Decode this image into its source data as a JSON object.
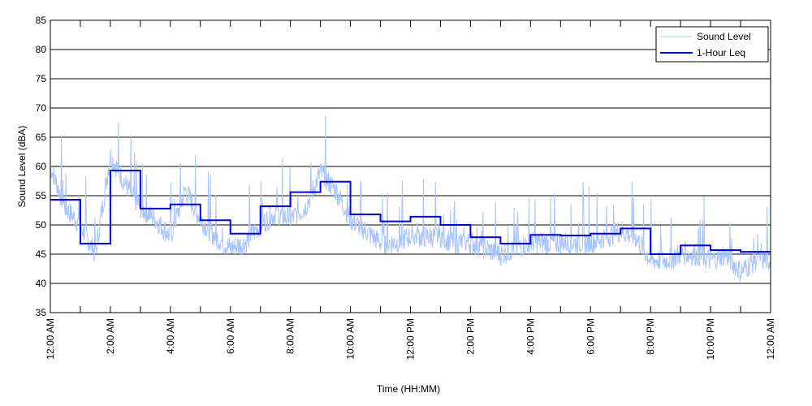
{
  "chart_data": {
    "type": "line",
    "title": "",
    "xlabel": "Time (HH:MM)",
    "ylabel": "Sound Level (dBA)",
    "xlim_hours": [
      0,
      24
    ],
    "ylim": [
      35,
      85
    ],
    "y_ticks": [
      35,
      40,
      45,
      50,
      55,
      60,
      65,
      70,
      75,
      80,
      85
    ],
    "x_tick_labels": [
      "12:00 AM",
      "2:00 AM",
      "4:00 AM",
      "6:00 AM",
      "8:00 AM",
      "10:00 AM",
      "12:00 PM",
      "2:00 PM",
      "4:00 PM",
      "6:00 PM",
      "8:00 PM",
      "10:00 PM",
      "12:00 AM"
    ],
    "grid": "horizontal",
    "legend_position": "top-right",
    "series": [
      {
        "name": "Sound Level",
        "color": "#a8c4ff",
        "interval_hours": 0.5,
        "values": [
          60,
          53,
          50,
          45,
          62,
          57,
          53,
          51,
          48,
          56,
          51,
          48,
          46,
          47,
          50,
          52,
          51,
          53,
          59,
          56,
          51,
          49,
          47,
          47,
          48,
          48,
          48,
          47,
          47,
          46,
          45,
          46,
          47,
          47,
          47,
          47,
          47,
          48,
          49,
          48,
          44,
          44,
          45,
          45,
          44,
          45,
          42,
          44,
          44
        ]
      },
      {
        "name": "1-Hour Leq",
        "color": "#0000ff",
        "interval_hours": 1,
        "values": [
          54.3,
          46.8,
          59.3,
          52.8,
          53.5,
          50.8,
          48.5,
          53.2,
          55.6,
          57.4,
          51.8,
          50.6,
          51.4,
          50.0,
          47.9,
          46.8,
          48.3,
          48.2,
          48.5,
          49.4,
          45.0,
          46.5,
          45.7,
          45.4
        ]
      }
    ]
  }
}
